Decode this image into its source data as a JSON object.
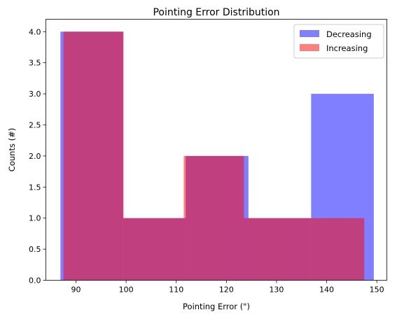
{
  "chart_data": {
    "type": "histogram",
    "title": "Pointing Error Distribution",
    "xlabel": "Pointing Error (\")",
    "ylabel": "Counts (#)",
    "xlim": [
      84,
      152
    ],
    "ylim": [
      0,
      4.2
    ],
    "xticks": [
      90,
      100,
      110,
      120,
      130,
      140,
      150
    ],
    "yticks": [
      0.0,
      0.5,
      1.0,
      1.5,
      2.0,
      2.5,
      3.0,
      3.5,
      4.0
    ],
    "xtick_labels": [
      "90",
      "100",
      "110",
      "120",
      "130",
      "140",
      "150"
    ],
    "ytick_labels": [
      "0.0",
      "0.5",
      "1.0",
      "1.5",
      "2.0",
      "2.5",
      "3.0",
      "3.5",
      "4.0"
    ],
    "grid": false,
    "legend_position": "top-right",
    "series": [
      {
        "name": "Decreasing",
        "color": "#0000ff",
        "alpha": 0.5,
        "bin_edges": [
          86.9,
          99.4,
          111.9,
          124.4,
          136.9,
          149.4
        ],
        "counts": [
          4,
          1,
          2,
          1,
          3
        ]
      },
      {
        "name": "Increasing",
        "color": "#ff0000",
        "alpha": 0.5,
        "bin_edges": [
          87.5,
          99.5,
          111.5,
          123.5,
          135.5,
          147.5
        ],
        "counts": [
          4,
          1,
          2,
          1,
          1
        ]
      }
    ]
  }
}
